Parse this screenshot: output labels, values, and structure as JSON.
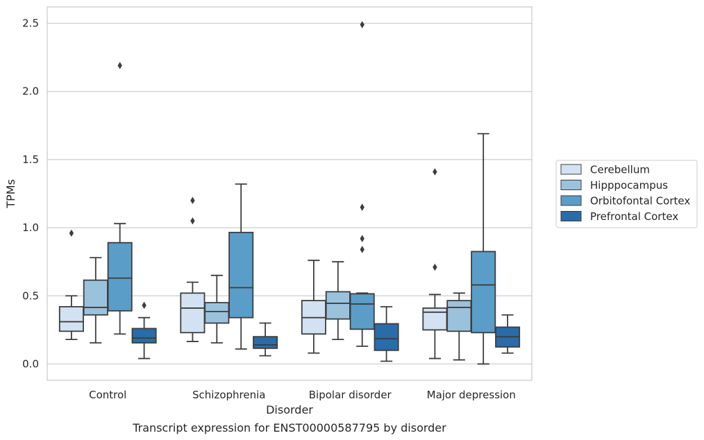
{
  "chart_data": {
    "type": "box",
    "caption": "Transcript expression for ENST00000587795 by disorder",
    "xlabel": "Disorder",
    "ylabel": "TPMs",
    "ylim": [
      -0.12,
      2.62
    ],
    "yticks": [
      "0.0",
      "0.5",
      "1.0",
      "1.5",
      "2.0",
      "2.5"
    ],
    "grid": "horizontal",
    "legend_position": "right",
    "categories": [
      "Control",
      "Schizophrenia",
      "Bipolar disorder",
      "Major depression"
    ],
    "series": [
      {
        "name": "Cerebellum",
        "color": "#d3e2f2",
        "boxes": [
          {
            "whislo": 0.18,
            "q1": 0.24,
            "med": 0.31,
            "q3": 0.42,
            "whishi": 0.5,
            "fliers": [
              0.96
            ]
          },
          {
            "whislo": 0.165,
            "q1": 0.23,
            "med": 0.41,
            "q3": 0.52,
            "whishi": 0.6,
            "fliers": [
              1.05,
              1.2
            ]
          },
          {
            "whislo": 0.08,
            "q1": 0.22,
            "med": 0.34,
            "q3": 0.465,
            "whishi": 0.76,
            "fliers": []
          },
          {
            "whislo": 0.04,
            "q1": 0.25,
            "med": 0.38,
            "q3": 0.41,
            "whishi": 0.51,
            "fliers": [
              0.71,
              1.41
            ]
          }
        ]
      },
      {
        "name": "Hipppocampus",
        "color": "#9ac2dc",
        "boxes": [
          {
            "whislo": 0.155,
            "q1": 0.36,
            "med": 0.415,
            "q3": 0.615,
            "whishi": 0.78,
            "fliers": []
          },
          {
            "whislo": 0.155,
            "q1": 0.3,
            "med": 0.385,
            "q3": 0.45,
            "whishi": 0.65,
            "fliers": []
          },
          {
            "whislo": 0.18,
            "q1": 0.33,
            "med": 0.445,
            "q3": 0.53,
            "whishi": 0.75,
            "fliers": []
          },
          {
            "whislo": 0.03,
            "q1": 0.24,
            "med": 0.415,
            "q3": 0.465,
            "whishi": 0.52,
            "fliers": []
          }
        ]
      },
      {
        "name": "Orbitofontal Cortex",
        "color": "#5a9dc9",
        "boxes": [
          {
            "whislo": 0.22,
            "q1": 0.39,
            "med": 0.63,
            "q3": 0.89,
            "whishi": 1.03,
            "fliers": [
              2.19
            ]
          },
          {
            "whislo": 0.11,
            "q1": 0.34,
            "med": 0.56,
            "q3": 0.965,
            "whishi": 1.32,
            "fliers": []
          },
          {
            "whislo": 0.13,
            "q1": 0.255,
            "med": 0.44,
            "q3": 0.515,
            "whishi": 0.52,
            "fliers": [
              0.84,
              0.92,
              1.15,
              2.49
            ]
          },
          {
            "whislo": 0.0,
            "q1": 0.23,
            "med": 0.58,
            "q3": 0.825,
            "whishi": 1.69,
            "fliers": []
          }
        ]
      },
      {
        "name": "Prefrontal Cortex",
        "color": "#2a6ba9",
        "boxes": [
          {
            "whislo": 0.04,
            "q1": 0.155,
            "med": 0.19,
            "q3": 0.26,
            "whishi": 0.34,
            "fliers": [
              0.43
            ]
          },
          {
            "whislo": 0.06,
            "q1": 0.115,
            "med": 0.14,
            "q3": 0.2,
            "whishi": 0.3,
            "fliers": []
          },
          {
            "whislo": 0.02,
            "q1": 0.1,
            "med": 0.185,
            "q3": 0.295,
            "whishi": 0.42,
            "fliers": []
          },
          {
            "whislo": 0.08,
            "q1": 0.125,
            "med": 0.2,
            "q3": 0.27,
            "whishi": 0.36,
            "fliers": []
          }
        ]
      }
    ]
  }
}
